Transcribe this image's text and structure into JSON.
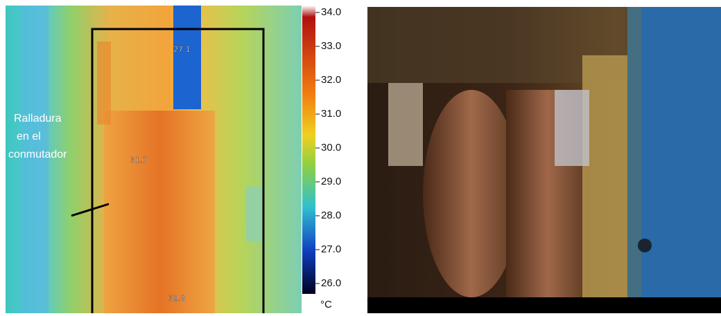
{
  "annotation": {
    "lines": [
      "Ralladura",
      "en el",
      "conmutador"
    ]
  },
  "spots": [
    "27.1",
    "31.7",
    "32.8"
  ],
  "scale": {
    "ticks": [
      "34.0",
      "33.0",
      "32.0",
      "31.0",
      "30.0",
      "29.0",
      "28.0",
      "27.0",
      "26.0"
    ],
    "unit": "°C"
  }
}
